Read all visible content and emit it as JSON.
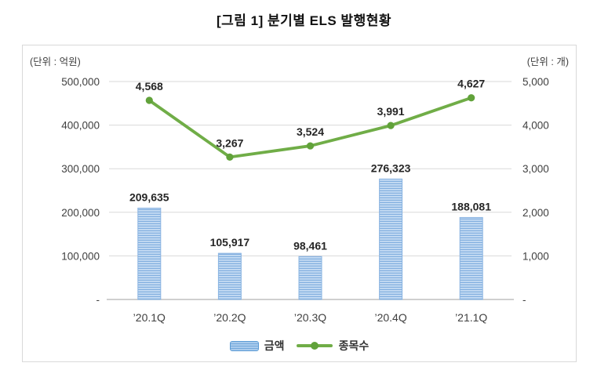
{
  "figure": {
    "title": "[그림 1] 분기별 ELS 발행현황",
    "unit_left": "(단위 : 억원)",
    "unit_right": "(단위 : 개)"
  },
  "legend": {
    "bar_label": "금액",
    "line_label": "종목수"
  },
  "colors": {
    "bar_stripe_light": "#c9def4",
    "bar_stripe_dark": "#82afdf",
    "bar_border": "#8ab4e2",
    "legend_bar_fill": "#74a9dc",
    "line": "#70ad47",
    "marker": "#61a23a",
    "gridline": "#d9d9d9",
    "axis_line": "#bfbfbf",
    "tick_text": "#404040",
    "data_label_text": "#262626",
    "frame_border": "#d9d9d9"
  },
  "chart_data": {
    "type": "bar+line",
    "categories": [
      "’20.1Q",
      "’20.2Q",
      "’20.3Q",
      "’20.4Q",
      "’21.1Q"
    ],
    "series": [
      {
        "name": "금액",
        "type": "bar",
        "axis": "left",
        "values": [
          209635,
          105917,
          98461,
          276323,
          188081
        ],
        "labels": [
          "209,635",
          "105,917",
          "98,461",
          "276,323",
          "188,081"
        ]
      },
      {
        "name": "종목수",
        "type": "line",
        "axis": "right",
        "values": [
          4568,
          3267,
          3524,
          3991,
          4627
        ],
        "labels": [
          "4,568",
          "3,267",
          "3,524",
          "3,991",
          "4,627"
        ]
      }
    ],
    "left_axis": {
      "unit": "(단위 : 억원)",
      "min": 0,
      "max": 500000,
      "tick_step": 100000,
      "tick_labels": [
        "-",
        "100,000",
        "200,000",
        "300,000",
        "400,000",
        "500,000"
      ]
    },
    "right_axis": {
      "unit": "(단위 : 개)",
      "min": 0,
      "max": 5000,
      "tick_step": 1000,
      "tick_labels": [
        "-",
        "1,000",
        "2,000",
        "3,000",
        "4,000",
        "5,000"
      ]
    },
    "grid": true,
    "legend_position": "bottom"
  }
}
